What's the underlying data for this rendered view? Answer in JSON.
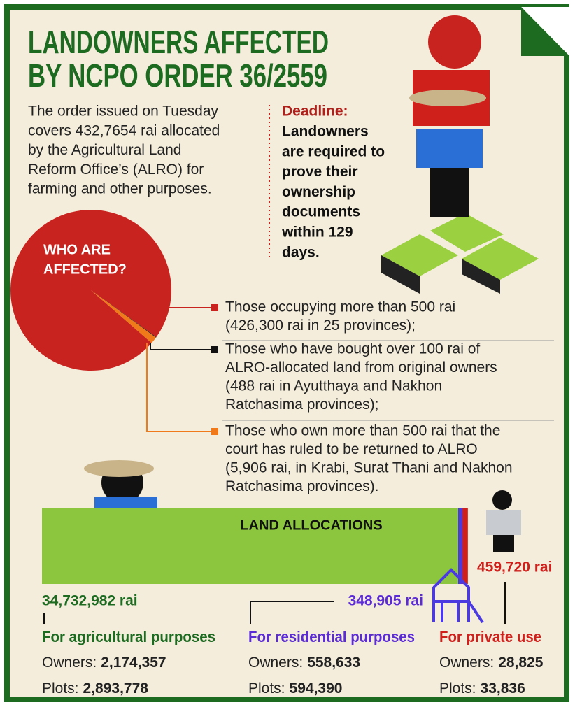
{
  "title": [
    "LANDOWNERS AFFECTED",
    "BY NCPO ORDER 36/2559"
  ],
  "intro": [
    "The order issued on Tuesday",
    "covers 432,7654 rai allocated",
    "by the Agricultural Land",
    "Reform Office’s (ALRO) for",
    "farming and other purposes."
  ],
  "deadline": {
    "label": "Deadline:",
    "lines": [
      "Landowners",
      "are required to",
      "prove their",
      "ownership",
      "documents",
      "within 129",
      "days."
    ]
  },
  "affected": {
    "label": [
      "WHO ARE",
      "AFFECTED?"
    ],
    "groups": [
      {
        "color": "#c8231f",
        "rai": 426300,
        "lines": [
          "Those occupying more than 500 rai",
          "(426,300 rai in 25 provinces);"
        ]
      },
      {
        "color": "#111111",
        "rai": 488,
        "lines": [
          "Those who have bought over 100 rai of",
          "ALRO-allocated land from original owners",
          "(488 rai in Ayutthaya and Nakhon",
          "Ratchasima provinces);"
        ]
      },
      {
        "color": "#f07a1a",
        "rai": 5906,
        "lines": [
          "Those who own more than 500 rai that the",
          "court has ruled to be returned to ALRO",
          "(5,906 rai, in Krabi, Surat Thani and Nakhon",
          "Ratchasima provinces)."
        ]
      }
    ]
  },
  "allocations": {
    "label": "LAND ALLOCATIONS",
    "groups": [
      {
        "name": "For agricultural purposes",
        "color": "#1d6b21",
        "bar_color": "#8cc63f",
        "rai": 34732982,
        "rai_label": "34,732,982 rai",
        "owners_label": "Owners:",
        "owners": "2,174,357",
        "plots_label": "Plots:",
        "plots": "2,893,778"
      },
      {
        "name": "For residential purposes",
        "color": "#5b2bd6",
        "bar_color": "#4a3ae0",
        "rai": 348905,
        "rai_label": "348,905 rai",
        "owners_label": "Owners:",
        "owners": "558,633",
        "plots_label": "Plots:",
        "plots": "594,390"
      },
      {
        "name": "For private use",
        "color": "#d0201c",
        "bar_color": "#d0201c",
        "rai": 459720,
        "rai_label": "459,720 rai",
        "owners_label": "Owners:",
        "owners": "28,825",
        "plots_label": "Plots:",
        "plots": "33,836"
      }
    ]
  }
}
